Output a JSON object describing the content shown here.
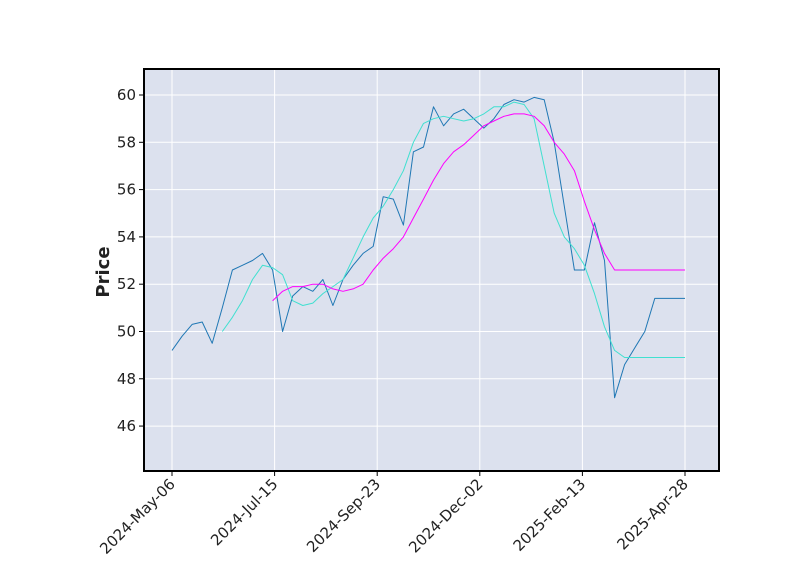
{
  "chart_data": {
    "type": "line",
    "title": "",
    "xlabel": "",
    "ylabel": "Price",
    "ylim": [
      44.1,
      61.1
    ],
    "grid": true,
    "colors": {
      "background": "#dce1ee",
      "price": "#1f77b4",
      "ma_short": "#40e0d0",
      "ma_long": "#ff00ff",
      "frame": "#000000",
      "grid": "#ffffff"
    },
    "x_ticks": [
      "2024-May-06",
      "2024-Jul-15",
      "2024-Sep-23",
      "2024-Dec-02",
      "2025-Feb-13",
      "2025-Apr-28"
    ],
    "y_ticks": [
      46,
      48,
      50,
      52,
      54,
      56,
      58,
      60
    ],
    "series": [
      {
        "color": "#1f77b4",
        "x": [
          "2024-05-06",
          "2024-05-13",
          "2024-05-20",
          "2024-05-27",
          "2024-06-03",
          "2024-06-10",
          "2024-06-17",
          "2024-06-24",
          "2024-07-01",
          "2024-07-08",
          "2024-07-15",
          "2024-07-22",
          "2024-07-29",
          "2024-08-05",
          "2024-08-12",
          "2024-08-19",
          "2024-08-26",
          "2024-09-02",
          "2024-09-09",
          "2024-09-16",
          "2024-09-23",
          "2024-09-30",
          "2024-10-07",
          "2024-10-14",
          "2024-10-21",
          "2024-10-28",
          "2024-11-04",
          "2024-11-11",
          "2024-11-18",
          "2024-11-25",
          "2024-12-02",
          "2024-12-09",
          "2024-12-16",
          "2024-12-23",
          "2024-12-30",
          "2025-01-06",
          "2025-01-13",
          "2025-01-20",
          "2025-01-27",
          "2025-02-03",
          "2025-02-10",
          "2025-02-17",
          "2025-02-24",
          "2025-03-03",
          "2025-03-10",
          "2025-03-17",
          "2025-03-24",
          "2025-03-31",
          "2025-04-07",
          "2025-04-14",
          "2025-04-21",
          "2025-04-28"
        ],
        "values": [
          49.2,
          49.8,
          50.3,
          50.4,
          49.5,
          51.0,
          52.6,
          52.8,
          53.0,
          53.3,
          52.6,
          50.0,
          51.5,
          51.9,
          51.7,
          52.2,
          51.1,
          52.2,
          52.8,
          53.3,
          53.6,
          55.7,
          55.6,
          54.5,
          57.6,
          57.8,
          59.5,
          58.7,
          59.2,
          59.4,
          59.0,
          58.6,
          59.0,
          59.6,
          59.8,
          59.7,
          59.9,
          59.8,
          58.0,
          55.3,
          52.6,
          52.6,
          54.6,
          53.0,
          47.2,
          48.6,
          49.3,
          50.0,
          51.4,
          51.4,
          51.4,
          51.4
        ]
      },
      {
        "color": "#40e0d0",
        "x": [
          "2024-06-10",
          "2024-06-17",
          "2024-06-24",
          "2024-07-01",
          "2024-07-08",
          "2024-07-15",
          "2024-07-22",
          "2024-07-29",
          "2024-08-05",
          "2024-08-12",
          "2024-08-19",
          "2024-08-26",
          "2024-09-02",
          "2024-09-09",
          "2024-09-16",
          "2024-09-23",
          "2024-09-30",
          "2024-10-07",
          "2024-10-14",
          "2024-10-21",
          "2024-10-28",
          "2024-11-04",
          "2024-11-11",
          "2024-11-18",
          "2024-11-25",
          "2024-12-02",
          "2024-12-09",
          "2024-12-16",
          "2024-12-23",
          "2024-12-30",
          "2025-01-06",
          "2025-01-13",
          "2025-01-20",
          "2025-01-27",
          "2025-02-03",
          "2025-02-10",
          "2025-02-17",
          "2025-02-24",
          "2025-03-03",
          "2025-03-10",
          "2025-03-17",
          "2025-03-24",
          "2025-03-31",
          "2025-04-07",
          "2025-04-14",
          "2025-04-21",
          "2025-04-28"
        ],
        "values": [
          50.0,
          50.6,
          51.3,
          52.2,
          52.8,
          52.7,
          52.4,
          51.3,
          51.1,
          51.2,
          51.6,
          51.9,
          52.2,
          53.1,
          54.0,
          54.8,
          55.3,
          56.0,
          56.8,
          58.0,
          58.8,
          59.0,
          59.1,
          59.0,
          58.9,
          59.0,
          59.2,
          59.5,
          59.5,
          59.7,
          59.6,
          59.0,
          57.0,
          55.0,
          54.0,
          53.5,
          52.8,
          51.6,
          50.2,
          49.2,
          48.9,
          48.9,
          48.9,
          48.9,
          48.9,
          48.9,
          48.9
        ]
      },
      {
        "color": "#ff00ff",
        "x": [
          "2024-07-15",
          "2024-07-22",
          "2024-07-29",
          "2024-08-05",
          "2024-08-12",
          "2024-08-19",
          "2024-08-26",
          "2024-09-02",
          "2024-09-09",
          "2024-09-16",
          "2024-09-23",
          "2024-09-30",
          "2024-10-07",
          "2024-10-14",
          "2024-10-21",
          "2024-10-28",
          "2024-11-04",
          "2024-11-11",
          "2024-11-18",
          "2024-11-25",
          "2024-12-02",
          "2024-12-09",
          "2024-12-16",
          "2024-12-23",
          "2024-12-30",
          "2025-01-06",
          "2025-01-13",
          "2025-01-20",
          "2025-01-27",
          "2025-02-03",
          "2025-02-10",
          "2025-02-17",
          "2025-02-24",
          "2025-03-03",
          "2025-03-10",
          "2025-03-17",
          "2025-03-24",
          "2025-03-31",
          "2025-04-07",
          "2025-04-14",
          "2025-04-21",
          "2025-04-28"
        ],
        "values": [
          51.3,
          51.7,
          51.9,
          51.9,
          52.0,
          52.0,
          51.8,
          51.7,
          51.8,
          52.0,
          52.6,
          53.1,
          53.5,
          54.0,
          54.8,
          55.6,
          56.4,
          57.1,
          57.6,
          57.9,
          58.3,
          58.7,
          58.9,
          59.1,
          59.2,
          59.2,
          59.1,
          58.7,
          58.0,
          57.5,
          56.8,
          55.5,
          54.3,
          53.3,
          52.6,
          52.6,
          52.6,
          52.6,
          52.6,
          52.6,
          52.6,
          52.6
        ]
      }
    ]
  }
}
